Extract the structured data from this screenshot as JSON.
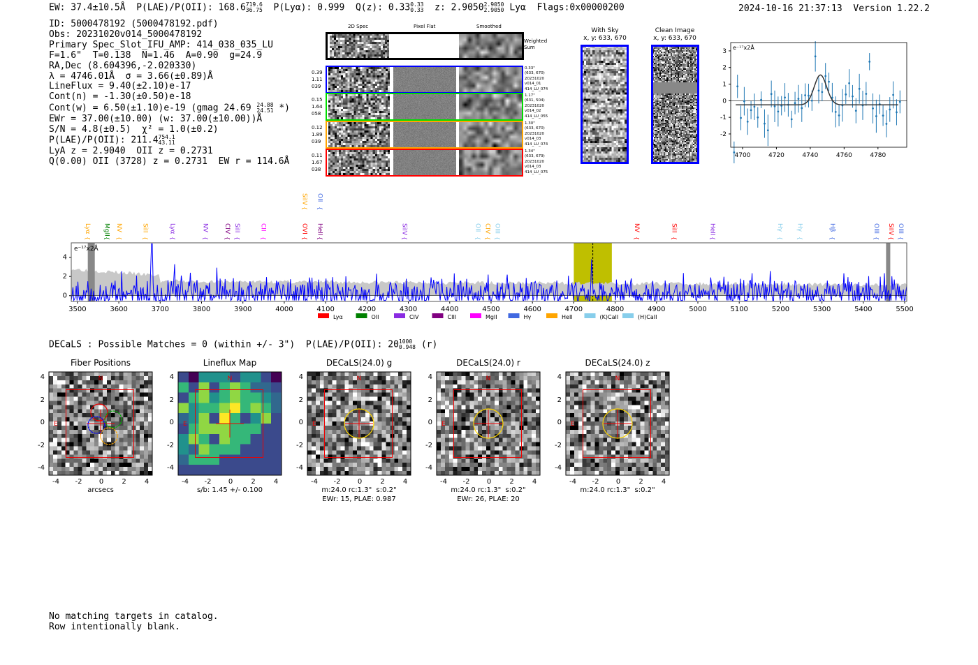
{
  "header": {
    "ew": "EW: 37.4±10.5Å",
    "plae_label": "P(LAE)/P(OII): 168.6",
    "plae_hi": "719.6",
    "plae_lo": "36.75",
    "plya": "P(Lyα): 0.999",
    "qz": "Q(z): 0.33",
    "qz_hi": "0.33",
    "qz_lo": "0.33",
    "z": "z: 2.9050",
    "z_hi": "2.9050",
    "z_lo": "2.9050",
    "line": "Lyα",
    "flags": "Flags:0x00000200",
    "datetime": "2024-10-16 21:37:13",
    "version": "Version 1.22.2"
  },
  "info": {
    "lines": [
      "ID: 5000478192 (5000478192.pdf)",
      "Obs: 20231020v014_5000478192",
      "Primary Spec_Slot_IFU_AMP: 414_038_035_LU",
      "F=1.6\"  T=0.138  N=1.46  A=0.90  g=24.9",
      "RA,Dec (8.604396,-2.020330)",
      "λ = 4746.01Å  σ = 3.66(±0.89)Å",
      "LineFlux = 9.40(±2.10)e-17",
      "Cont(n) = -1.30(±0.50)e-18"
    ],
    "contw": "Cont(w) = 6.50(±1.10)e-19 (gmag 24.69",
    "contw_hi": "24.88",
    "contw_lo": "24.51",
    "contw_end": "*)",
    "lines2": [
      "EWr = 37.00(±10.00) (w: 37.00(±10.00))Å",
      "S/N = 4.8(±0.5)  χ² = 1.0(±0.2)"
    ],
    "plae": "P(LAE)/P(OII): 211.4",
    "plae_hi": "754.1",
    "plae_lo": "43.11",
    "lines3": [
      "LyA z = 2.9040  OII z = 0.2731",
      "Q(0.00) OII (3728) z = 0.2731  EW r = 114.6Å"
    ]
  },
  "spec2d": {
    "headers": [
      "2D Spec",
      "Pixel Flat",
      "Smoothed"
    ],
    "sum_label": "Weighted\nSum",
    "rows": [
      {
        "color": "#0000ff",
        "left": "0.39\n1.11\n039",
        "right": "0.33\"\n(633, 670)\n20231020\nv014_01\n414_LU_074"
      },
      {
        "color": "#00dd00",
        "left": "0.15\n1.64\n058",
        "right": "1.17\"\n(631, 504)\n20231020\nv014_02\n414_LU_055"
      },
      {
        "color": "#ffa500",
        "left": "0.12\n1.89\n039",
        "right": "1.30\"\n(633, 670)\n20231020\nv014_03\n414_LU_074"
      },
      {
        "color": "#ff0000",
        "left": "0.11\n1.67\n038",
        "right": "1.34\"\n(633, 679)\n20231020\nv014_03\n414_LU_075"
      }
    ]
  },
  "sky": {
    "with_title": "With Sky\nx, y: 633, 670",
    "clean_title": "Clean Image\nx, y: 633, 670"
  },
  "chart_data": [
    {
      "type": "line",
      "title": "line fit",
      "ylabel": "e$^{-17}$x2Å",
      "unit_label": "e⁻¹⁷x2Å",
      "xlim": [
        4693,
        4797
      ],
      "ylim": [
        -2.8,
        3.5
      ],
      "xticks": [
        4700,
        4720,
        4740,
        4760,
        4780
      ],
      "yticks": [
        -2,
        -1,
        0,
        1,
        2,
        3
      ],
      "fit_center": 4746.01,
      "fit_sigma": 3.66,
      "fit_amp": 1.8
    },
    {
      "type": "line",
      "title": "full spectrum",
      "unit_label": "e⁻¹⁷x2Å",
      "xlim": [
        3485,
        5505
      ],
      "ylim": [
        -0.6,
        5.5
      ],
      "xticks": [
        3500,
        3600,
        3700,
        3800,
        3900,
        4000,
        4100,
        4200,
        4300,
        4400,
        4500,
        4600,
        4700,
        4800,
        4900,
        5000,
        5100,
        5200,
        5300,
        5400,
        5500
      ],
      "yticks": [
        0,
        2,
        4
      ],
      "highlight": [
        4700,
        4792
      ],
      "line_center": 4746,
      "lines": [
        {
          "n": "Lyα",
          "w": 3515,
          "c": "#ffa500"
        },
        {
          "n": "MgII",
          "w": 3562,
          "c": "#008000"
        },
        {
          "n": "NV",
          "w": 3591,
          "c": "#ffa500"
        },
        {
          "n": "SiII",
          "w": 3655,
          "c": "#ffa500"
        },
        {
          "n": "Lyα",
          "w": 3721,
          "c": "#8a2be2"
        },
        {
          "n": "NV",
          "w": 3800,
          "c": "#8a2be2"
        },
        {
          "n": "CIV",
          "w": 3853,
          "c": "#800080"
        },
        {
          "n": "SiII",
          "w": 3871,
          "c": "#8a2be2"
        },
        {
          "n": "CII",
          "w": 3940,
          "c": "#ff00ff"
        },
        {
          "n": "OVI",
          "w": 4040,
          "c": "#ff0000"
        },
        {
          "n": "HeII",
          "w": 4077,
          "c": "#800080"
        },
        {
          "n": "SiIV",
          "w": 4040,
          "c": "#ffa500",
          "up": 1
        },
        {
          "n": "OII",
          "w": 4077,
          "c": "#4169e1",
          "up": 1
        },
        {
          "n": "SiIV",
          "w": 4281,
          "c": "#8a2be2"
        },
        {
          "n": "OII",
          "w": 4459,
          "c": "#87ceeb"
        },
        {
          "n": "CIV",
          "w": 4479,
          "c": "#ffa500"
        },
        {
          "n": "OIII",
          "w": 4499,
          "c": "#87ceeb"
        },
        {
          "n": "NV",
          "w": 4843,
          "c": "#ff0000"
        },
        {
          "n": "SiII",
          "w": 4933,
          "c": "#ff0000"
        },
        {
          "n": "HeII",
          "w": 5026,
          "c": "#8a2be2"
        },
        {
          "n": "Hγ",
          "w": 5189,
          "c": "#87ceeb"
        },
        {
          "n": "Hγ",
          "w": 5237,
          "c": "#87ceeb"
        },
        {
          "n": "Hβ",
          "w": 5316,
          "c": "#4169e1"
        },
        {
          "n": "OIII",
          "w": 5422,
          "c": "#4169e1"
        },
        {
          "n": "SiIV",
          "w": 5458,
          "c": "#ff0000"
        },
        {
          "n": "OIII",
          "w": 5476,
          "c": "#4169e1"
        }
      ],
      "legend": [
        {
          "n": "Lyα",
          "c": "#ff0000"
        },
        {
          "n": "OII",
          "c": "#008000"
        },
        {
          "n": "CIV",
          "c": "#8a2be2"
        },
        {
          "n": "CIII",
          "c": "#800080"
        },
        {
          "n": "MgII",
          "c": "#ff00ff"
        },
        {
          "n": "Hγ",
          "c": "#4169e1"
        },
        {
          "n": "HeII",
          "c": "#ffa500"
        },
        {
          "n": "(K)CaII",
          "c": "#87ceeb"
        },
        {
          "n": "(H)CaII",
          "c": "#87ceeb"
        }
      ]
    }
  ],
  "decals": {
    "text": "DECaLS : Possible Matches = 0 (within +/- 3\")  P(LAE)/P(OII): 20",
    "hi": "1000",
    "lo": "0.948",
    "end": "(r)"
  },
  "panels": [
    {
      "title": "Fiber Positions",
      "cap1": "arcsecs",
      "cap2": ""
    },
    {
      "title": "Lineflux Map",
      "cap1": "s/b: 1.45 +/- 0.100",
      "cap2": ""
    },
    {
      "title": "DECaLS(24.0) g",
      "cap1": "m:24.0 rc:1.3\"  s:0.2\"",
      "cap2": "EWr: 15, PLAE: 0.987"
    },
    {
      "title": "DECaLS(24.0) r",
      "cap1": "m:24.0 rc:1.3\"  s:0.2\"",
      "cap2": "EWr: 26, PLAE: 20"
    },
    {
      "title": "DECaLS(24.0) z",
      "cap1": "m:24.0 rc:1.3\"  s:0.2\"",
      "cap2": ""
    }
  ],
  "panel_ticks": [
    "-4",
    "-2",
    "0",
    "2",
    "4"
  ],
  "north": "N",
  "east": "E",
  "footer": [
    "No matching targets in catalog.",
    "Row intentionally blank."
  ]
}
